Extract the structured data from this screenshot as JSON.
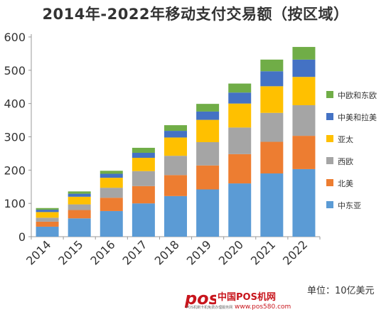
{
  "title": "2014年-2022年移动支付交易额（按区域）",
  "unit_note": "单位：10亿美元",
  "logo": {
    "brand": "pos",
    "name": "中国POS机网",
    "url": "www.pos580.com",
    "tagline": "POS机刷卡机免费办理服务网"
  },
  "colors": {
    "中东亚": "#5b9bd5",
    "北美": "#ed7d31",
    "西欧": "#a5a5a5",
    "亚太": "#ffc000",
    "中美和拉美": "#4472c4",
    "中欧和东欧": "#70ad47"
  },
  "chart_data": {
    "type": "bar",
    "stacked": true,
    "title": "2014年-2022年移动支付交易额（按区域）",
    "xlabel": "",
    "ylabel": "",
    "ylim": [
      0,
      600
    ],
    "yticks": [
      0,
      100,
      200,
      300,
      400,
      500,
      600
    ],
    "grid": false,
    "legend_position": "right",
    "categories": [
      "2014",
      "2015",
      "2016",
      "2017",
      "2018",
      "2019",
      "2020",
      "2021",
      "2022"
    ],
    "series": [
      {
        "name": "中东亚",
        "color": "#5b9bd5",
        "values": [
          30,
          55,
          77,
          100,
          122,
          142,
          160,
          190,
          203
        ]
      },
      {
        "name": "北美",
        "color": "#ed7d31",
        "values": [
          15,
          25,
          40,
          52,
          63,
          72,
          88,
          95,
          100
        ]
      },
      {
        "name": "西欧",
        "color": "#a5a5a5",
        "values": [
          12,
          17,
          30,
          45,
          58,
          70,
          80,
          87,
          92
        ]
      },
      {
        "name": "亚太",
        "color": "#ffc000",
        "values": [
          17,
          23,
          30,
          40,
          55,
          67,
          72,
          80,
          85
        ]
      },
      {
        "name": "中美和拉美",
        "color": "#4472c4",
        "values": [
          7,
          9,
          12,
          15,
          20,
          25,
          33,
          45,
          52
        ]
      },
      {
        "name": "中欧和东欧",
        "color": "#70ad47",
        "values": [
          5,
          7,
          9,
          15,
          17,
          23,
          27,
          35,
          38
        ]
      }
    ]
  }
}
